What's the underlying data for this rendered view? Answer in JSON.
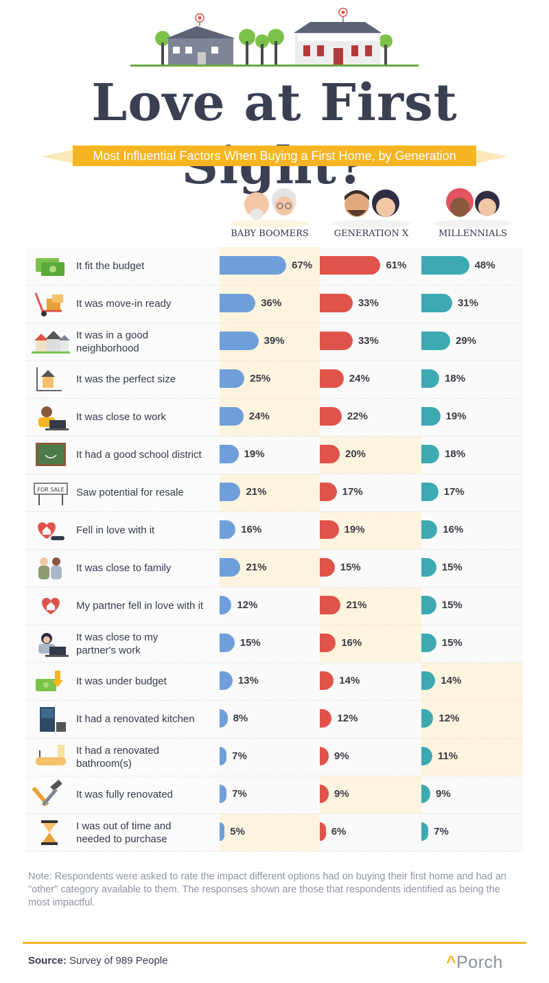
{
  "title": "Love at First Sight?",
  "subtitle": "Most Influential Factors When Buying a First Home, by Generation",
  "colors": {
    "baby_boomers": "#6f9fdb",
    "generation_x": "#e0534a",
    "millennials": "#3daab2",
    "highlight": "#fdf4df",
    "accent": "#f5b523"
  },
  "chart_data": {
    "type": "bar",
    "orientation": "horizontal",
    "title": "Love at First Sight?",
    "subtitle": "Most Influential Factors When Buying a First Home, by Generation",
    "xlim": [
      0,
      100
    ],
    "categories": [
      "It fit the budget",
      "It was move-in ready",
      "It was in a good neighborhood",
      "It was the perfect size",
      "It was close to work",
      "It had a good school district",
      "Saw potential for resale",
      "Fell in love with it",
      "It was close to family",
      "My partner fell in love with it",
      "It was close to my partner's work",
      "It was under budget",
      "It had a renovated kitchen",
      "It had a renovated bathroom(s)",
      "It was fully renovated",
      "I was out of time and needed to purchase"
    ],
    "label_lines": [
      [
        "It fit the budget"
      ],
      [
        "It was move-in ready"
      ],
      [
        "It was in a good",
        "neighborhood"
      ],
      [
        "It was the perfect size"
      ],
      [
        "It was close to work"
      ],
      [
        "It had a good school district"
      ],
      [
        "Saw potential for resale"
      ],
      [
        "Fell in love with it"
      ],
      [
        "It was close to family"
      ],
      [
        "My partner fell in love with it"
      ],
      [
        "It was close to my",
        "partner's work"
      ],
      [
        "It was under budget"
      ],
      [
        "It had a renovated kitchen"
      ],
      [
        "It had a renovated",
        "bathroom(s)"
      ],
      [
        "It was fully renovated"
      ],
      [
        "I was out of time and",
        "needed to purchase"
      ]
    ],
    "icons": [
      "money-icon",
      "moving-dolly-icon",
      "neighborhood-houses-icon",
      "house-size-icon",
      "laptop-worker-icon",
      "chalkboard-icon",
      "for-sale-sign-icon",
      "heart-house-hand-icon",
      "family-icon",
      "heart-house-icon",
      "laptop-partner-icon",
      "money-down-arrow-icon",
      "fridge-kitchen-icon",
      "bathtub-icon",
      "hammer-wrench-icon",
      "hourglass-icon"
    ],
    "series": [
      {
        "name": "BABY BOOMERS",
        "values": [
          67,
          36,
          39,
          25,
          24,
          19,
          21,
          16,
          21,
          12,
          15,
          13,
          8,
          7,
          7,
          5
        ]
      },
      {
        "name": "GENERATION X",
        "values": [
          61,
          33,
          33,
          24,
          22,
          20,
          17,
          19,
          15,
          21,
          16,
          14,
          12,
          9,
          9,
          6
        ]
      },
      {
        "name": "MILLENNIALS",
        "values": [
          48,
          31,
          29,
          18,
          19,
          18,
          17,
          16,
          15,
          15,
          15,
          14,
          12,
          11,
          9,
          7
        ]
      }
    ],
    "highlighted_generation_per_row": [
      0,
      0,
      0,
      0,
      0,
      1,
      0,
      1,
      0,
      1,
      1,
      2,
      2,
      2,
      1,
      0
    ]
  },
  "note": "Note: Respondents were asked to rate the impact different options had on buying their first home and had an \"other\" category available to them.  The responses shown are those that respondents identified as being the most impactful.",
  "source": {
    "label": "Source:",
    "text": "Survey of 989 People"
  },
  "brand": "Porch"
}
